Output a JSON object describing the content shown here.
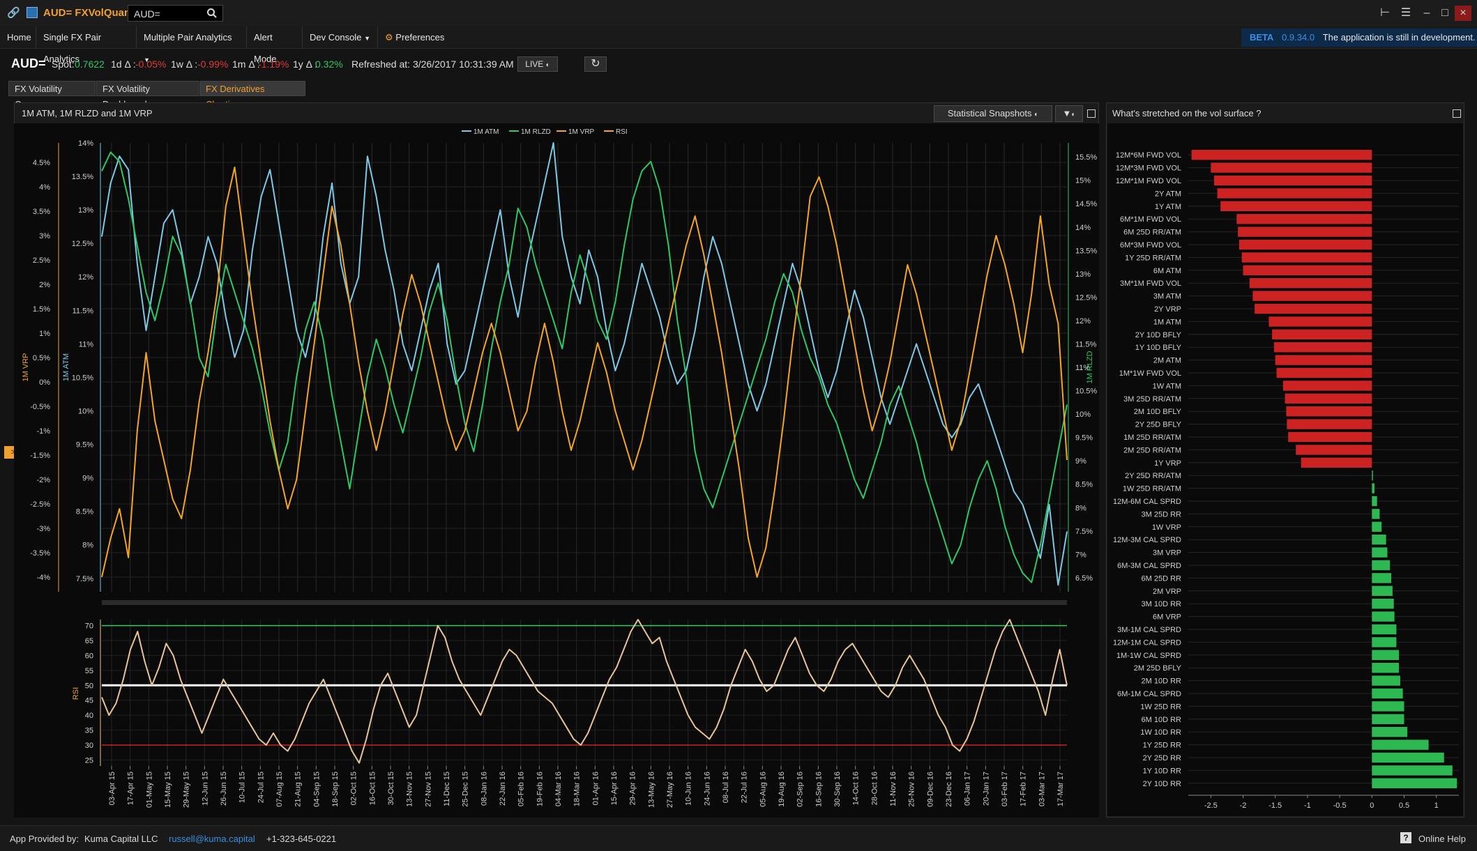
{
  "titlebar": {
    "app_title": "AUD= FXVolQuant",
    "ric_input_value": "AUD="
  },
  "menu": {
    "items": [
      "Home",
      "Single FX Pair Analytics",
      "Multiple Pair Analytics",
      "Alert Mode",
      "Dev Console",
      "Preferences"
    ],
    "beta_label": "BETA",
    "version": "0.9.34.0",
    "dev_message": "The application is still in development."
  },
  "quote": {
    "ric": "AUD=",
    "spot_label": "Spot:",
    "spot": "0.7622",
    "d1_label": "1d Δ :",
    "d1": "-0.05%",
    "w1_label": "1w Δ :",
    "w1": "-0.99%",
    "m1_label": "1m Δ :",
    "m1": "-1.19%",
    "y1_label": "1y Δ :",
    "y1": "0.32%",
    "refreshed": "Refreshed at: 3/26/2017 10:31:39 AM",
    "live_label": "LIVE"
  },
  "tabs": [
    "FX Volatility Cones",
    "FX Volatility Dashboard",
    "FX Derivatives Charting"
  ],
  "left_panel": {
    "title": "1M ATM, 1M RLZD and 1M VRP",
    "snapshots_button": "Statistical Snapshots",
    "expand_tab": ">"
  },
  "right_panel": {
    "title": "What's stretched on the vol surface ?"
  },
  "colors": {
    "atm": "#7ec8e8",
    "rlzd": "#2ec866",
    "vrp": "#f5a623",
    "rsi": "#e8c497",
    "neg_bar": "#cc2222",
    "pos_bar": "#2eb852",
    "accent": "#f0a030"
  },
  "footer": {
    "provided_by": "App Provided by:",
    "provider": "Kuma Capital LLC",
    "email": "russell@kuma.capital",
    "phone": "+1-323-645-0221",
    "help": "Online Help"
  },
  "chart_data": [
    {
      "type": "line",
      "legend": [
        "1M ATM",
        "1M RLZD",
        "1M VRP",
        "RSI"
      ],
      "legend_position": "top-center",
      "x_tick_labels": [
        "03-Apr 15",
        "17-Apr 15",
        "01-May 15",
        "15-May 15",
        "29-May 15",
        "12-Jun 15",
        "26-Jun 15",
        "10-Jul 15",
        "24-Jul 15",
        "07-Aug 15",
        "21-Aug 15",
        "04-Sep 15",
        "18-Sep 15",
        "02-Oct 15",
        "16-Oct 15",
        "30-Oct 15",
        "13-Nov 15",
        "27-Nov 15",
        "11-Dec 15",
        "25-Dec 15",
        "08-Jan 16",
        "22-Jan 16",
        "05-Feb 16",
        "19-Feb 16",
        "04-Mar 16",
        "18-Mar 16",
        "01-Apr 16",
        "15-Apr 16",
        "29-Apr 16",
        "13-May 16",
        "27-May 16",
        "10-Jun 16",
        "24-Jun 16",
        "08-Jul 16",
        "22-Jul 16",
        "05-Aug 16",
        "19-Aug 16",
        "02-Sep 16",
        "16-Sep 16",
        "30-Sep 16",
        "14-Oct 16",
        "28-Oct 16",
        "11-Nov 16",
        "25-Nov 16",
        "09-Dec 16",
        "23-Dec 16",
        "06-Jan 17",
        "20-Jan 17",
        "03-Feb 17",
        "17-Feb 17",
        "03-Mar 17",
        "17-Mar 17"
      ],
      "vrp_axis": {
        "label": "1M VRP",
        "ticks": [
          "4.5%",
          "4%",
          "3.5%",
          "3%",
          "2.5%",
          "2%",
          "1.5%",
          "1%",
          "0.5%",
          "0%",
          "-0.5%",
          "-1%",
          "-1.5%",
          "-2%",
          "-2.5%",
          "-3%",
          "-3.5%",
          "-4%"
        ],
        "ylim": [
          -4.3,
          4.9
        ]
      },
      "atm_axis": {
        "label": "1M ATM",
        "ticks": [
          "14%",
          "13.5%",
          "13%",
          "12.5%",
          "12%",
          "11.5%",
          "11%",
          "10.5%",
          "10%",
          "9.5%",
          "9%",
          "8.5%",
          "8%",
          "7.5%"
        ],
        "ylim": [
          7.3,
          14
        ]
      },
      "rlzd_axis": {
        "label": "1M RLZD",
        "ticks": [
          "15.5%",
          "15%",
          "14.5%",
          "14%",
          "13.5%",
          "13%",
          "12.5%",
          "12%",
          "11.5%",
          "11%",
          "10.5%",
          "10%",
          "9.5%",
          "9%",
          "8.5%",
          "8%",
          "7.5%",
          "7%",
          "6.5%"
        ],
        "ylim": [
          6.2,
          15.8
        ]
      },
      "series": [
        {
          "name": "1M ATM",
          "axis": "atm",
          "values": [
            12.6,
            13.4,
            13.8,
            13.6,
            12.2,
            11.2,
            12.0,
            12.8,
            13.0,
            12.4,
            11.6,
            12.0,
            12.6,
            12.2,
            11.4,
            10.8,
            11.2,
            12.4,
            13.2,
            13.6,
            12.8,
            12.0,
            11.2,
            10.8,
            11.4,
            12.6,
            13.4,
            12.2,
            11.6,
            12.0,
            13.8,
            13.2,
            12.4,
            11.8,
            11.0,
            10.6,
            11.2,
            11.8,
            12.2,
            11.0,
            10.4,
            10.6,
            11.2,
            11.8,
            12.4,
            13.0,
            12.0,
            11.4,
            12.2,
            12.8,
            13.4,
            14.0,
            12.6,
            12.0,
            11.6,
            12.4,
            12.0,
            11.2,
            10.6,
            11.0,
            11.6,
            12.2,
            11.8,
            11.4,
            10.8,
            10.4,
            10.6,
            11.2,
            12.0,
            12.6,
            12.2,
            11.6,
            11.0,
            10.4,
            10.0,
            10.4,
            11.0,
            11.6,
            12.2,
            11.8,
            11.2,
            10.6,
            10.2,
            10.6,
            11.2,
            11.8,
            11.4,
            10.8,
            10.2,
            9.8,
            10.2,
            10.6,
            11.0,
            10.6,
            10.2,
            9.8,
            9.6,
            9.8,
            10.2,
            10.4,
            10.0,
            9.6,
            9.2,
            8.8,
            8.6,
            8.2,
            7.8,
            8.6,
            7.4,
            8.2
          ]
        },
        {
          "name": "1M RLZD",
          "axis": "rlzd",
          "values": [
            15.2,
            15.6,
            15.4,
            14.6,
            13.6,
            12.6,
            12.0,
            12.8,
            13.8,
            13.4,
            12.4,
            11.2,
            10.8,
            12.2,
            13.2,
            12.6,
            12.0,
            11.4,
            10.6,
            9.6,
            8.8,
            9.4,
            10.8,
            11.8,
            12.4,
            11.6,
            10.4,
            9.4,
            8.4,
            9.6,
            10.8,
            11.6,
            11.0,
            10.2,
            9.6,
            10.4,
            11.2,
            12.2,
            12.8,
            12.0,
            10.8,
            9.8,
            9.2,
            10.2,
            11.4,
            12.4,
            13.2,
            14.4,
            14.0,
            13.2,
            12.6,
            12.0,
            11.4,
            12.6,
            13.4,
            12.8,
            12.0,
            11.6,
            12.4,
            13.6,
            14.6,
            15.2,
            15.4,
            14.8,
            13.6,
            12.0,
            10.8,
            9.2,
            8.4,
            8.0,
            8.6,
            9.2,
            9.8,
            10.4,
            11.0,
            11.6,
            12.4,
            13.0,
            12.6,
            11.8,
            11.2,
            10.8,
            10.2,
            9.8,
            9.2,
            8.6,
            8.2,
            8.8,
            9.4,
            10.2,
            10.6,
            10.0,
            9.4,
            8.6,
            8.0,
            7.4,
            6.8,
            7.2,
            8.0,
            8.6,
            9.0,
            8.4,
            7.6,
            7.0,
            6.6,
            6.4,
            7.2,
            8.2,
            9.2,
            10.2
          ]
        },
        {
          "name": "1M VRP",
          "axis": "vrp",
          "values": [
            -4.0,
            -3.2,
            -2.6,
            -3.6,
            -1.0,
            0.6,
            -0.8,
            -1.6,
            -2.4,
            -2.8,
            -1.8,
            -0.4,
            0.6,
            1.8,
            3.6,
            4.4,
            3.0,
            1.6,
            0.4,
            -0.8,
            -1.8,
            -2.6,
            -2.0,
            -0.6,
            0.8,
            2.2,
            3.6,
            2.8,
            1.6,
            0.4,
            -0.6,
            -1.4,
            -0.6,
            0.4,
            1.4,
            2.2,
            1.6,
            0.8,
            0.0,
            -0.8,
            -1.4,
            -1.0,
            -0.2,
            0.6,
            1.2,
            0.6,
            -0.2,
            -1.0,
            -0.6,
            0.4,
            1.2,
            0.4,
            -0.6,
            -1.4,
            -0.8,
            0.0,
            0.8,
            0.2,
            -0.6,
            -1.2,
            -1.8,
            -1.2,
            -0.4,
            0.4,
            1.2,
            2.0,
            2.8,
            3.4,
            2.6,
            1.6,
            0.6,
            -0.6,
            -1.8,
            -3.2,
            -4.0,
            -3.4,
            -2.2,
            -0.8,
            0.8,
            2.2,
            3.8,
            4.2,
            3.6,
            2.8,
            1.8,
            0.8,
            -0.2,
            -1.0,
            -0.4,
            0.4,
            1.4,
            2.4,
            1.8,
            1.0,
            0.2,
            -0.6,
            -1.4,
            -0.8,
            0.2,
            1.2,
            2.2,
            3.0,
            2.4,
            1.6,
            0.6,
            1.8,
            3.4,
            2.0,
            1.2,
            -1.6
          ]
        },
        {
          "name": "RSI",
          "axis": "rsi",
          "values": [
            46,
            40,
            44,
            52,
            62,
            68,
            58,
            50,
            56,
            64,
            60,
            52,
            46,
            40,
            34,
            40,
            46,
            52,
            48,
            44,
            40,
            36,
            32,
            30,
            34,
            30,
            28,
            32,
            38,
            44,
            48,
            52,
            46,
            40,
            34,
            28,
            24,
            32,
            42,
            50,
            54,
            48,
            42,
            36,
            40,
            50,
            60,
            70,
            66,
            58,
            52,
            48,
            44,
            40,
            46,
            52,
            58,
            62,
            60,
            56,
            52,
            48,
            46,
            44,
            40,
            36,
            32,
            30,
            34,
            40,
            46,
            52,
            56,
            62,
            68,
            72,
            68,
            64,
            66,
            58,
            52,
            46,
            40,
            36,
            34,
            32,
            36,
            42,
            50,
            56,
            62,
            58,
            52,
            48,
            50,
            56,
            62,
            66,
            60,
            54,
            50,
            48,
            52,
            58,
            62,
            64,
            60,
            56,
            52,
            48,
            46,
            50,
            56,
            60,
            56,
            52,
            46,
            40,
            36,
            30,
            28,
            32,
            38,
            46,
            54,
            62,
            68,
            72,
            66,
            60,
            54,
            48,
            40,
            52,
            62,
            50
          ]
        }
      ],
      "rsi_axis": {
        "label": "RSI",
        "ticks": [
          "70",
          "65",
          "60",
          "55",
          "50",
          "45",
          "40",
          "35",
          "30",
          "25"
        ],
        "ylim": [
          23,
          72
        ]
      },
      "rsi_reference_lines": [
        70,
        50,
        30
      ]
    },
    {
      "type": "bar",
      "orientation": "horizontal",
      "categories": [
        "12M*6M FWD VOL",
        "12M*3M FWD VOL",
        "12M*1M FWD VOL",
        "2Y ATM",
        "1Y ATM",
        "6M*1M FWD VOL",
        "6M 25D RR/ATM",
        "6M*3M FWD VOL",
        "1Y 25D RR/ATM",
        "6M ATM",
        "3M*1M FWD VOL",
        "3M ATM",
        "2Y VRP",
        "1M ATM",
        "2Y 10D BFLY",
        "1Y 10D BFLY",
        "2M ATM",
        "1M*1W FWD VOL",
        "1W ATM",
        "3M 25D RR/ATM",
        "2M 10D BFLY",
        "2Y 25D BFLY",
        "1M 25D RR/ATM",
        "2M 25D RR/ATM",
        "1Y VRP",
        "2Y 25D RR/ATM",
        "1W 25D RR/ATM",
        "12M-6M CAL SPRD",
        "3M 25D RR",
        "1W VRP",
        "12M-3M CAL SPRD",
        "3M VRP",
        "6M-3M CAL SPRD",
        "6M 25D RR",
        "2M VRP",
        "3M 10D RR",
        "6M VRP",
        "3M-1M CAL SPRD",
        "12M-1M CAL SPRD",
        "1M-1W CAL SPRD",
        "2M 25D BFLY",
        "2M 10D RR",
        "6M-1M CAL SPRD",
        "1W 25D RR",
        "6M 10D RR",
        "1W 10D RR",
        "1Y 25D RR",
        "2Y 25D RR",
        "1Y 10D RR",
        "2Y 10D RR"
      ],
      "values": [
        -2.8,
        -2.5,
        -2.45,
        -2.4,
        -2.35,
        -2.1,
        -2.08,
        -2.06,
        -2.02,
        -2.0,
        -1.9,
        -1.85,
        -1.82,
        -1.6,
        -1.55,
        -1.52,
        -1.5,
        -1.48,
        -1.38,
        -1.35,
        -1.33,
        -1.32,
        -1.3,
        -1.18,
        -1.1,
        0.0,
        0.04,
        0.08,
        0.12,
        0.15,
        0.22,
        0.24,
        0.28,
        0.3,
        0.32,
        0.34,
        0.35,
        0.38,
        0.38,
        0.42,
        0.42,
        0.44,
        0.48,
        0.5,
        0.5,
        0.55,
        0.88,
        1.12,
        1.25,
        1.32
      ],
      "xlim": [
        -2.85,
        1.35
      ],
      "x_tick_labels": [
        "-2.5",
        "-2",
        "-1.5",
        "-1",
        "-0.5",
        "0",
        "0.5",
        "1"
      ],
      "x_ticks": [
        -2.5,
        -2,
        -1.5,
        -1,
        -0.5,
        0,
        0.5,
        1
      ]
    }
  ]
}
